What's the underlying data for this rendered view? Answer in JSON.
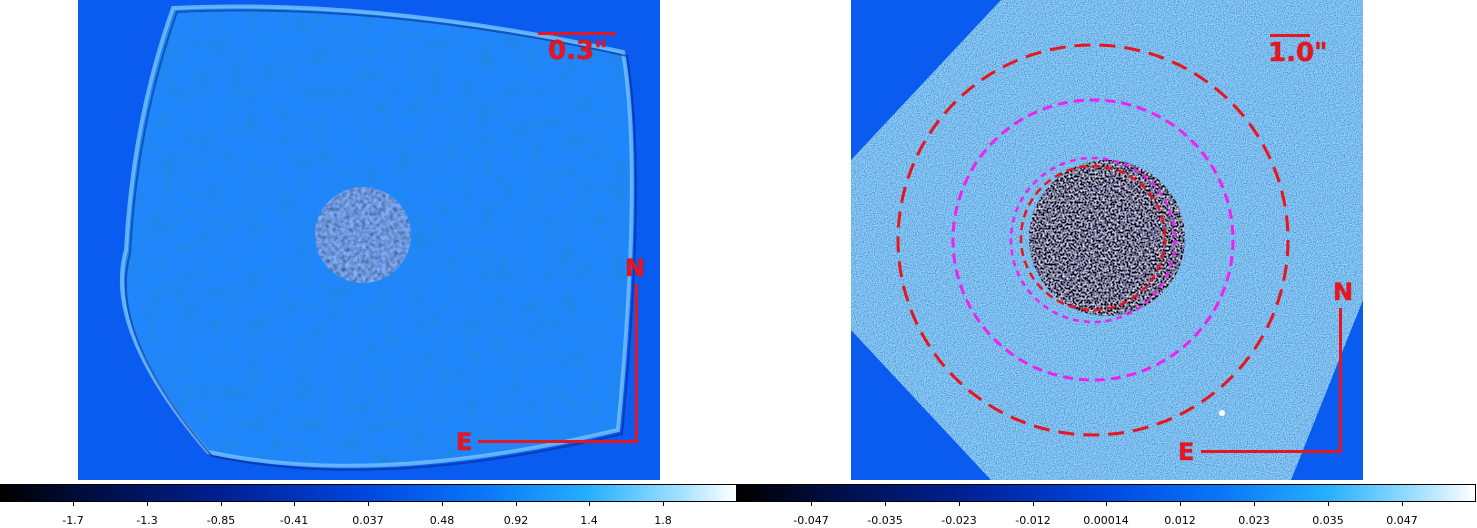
{
  "left_image": {
    "scale_label": "0.3\"",
    "north_label": "N",
    "east_label": "E"
  },
  "right_image": {
    "scale_label": "1.0\"",
    "north_label": "N",
    "east_label": "E"
  },
  "left_colorbar": {
    "ticks": [
      "-1.7",
      "-1.3",
      "-0.85",
      "-0.41",
      "0.037",
      "0.48",
      "0.92",
      "1.4",
      "1.8"
    ]
  },
  "right_colorbar": {
    "ticks": [
      "-0.047",
      "-0.035",
      "-0.023",
      "-0.012",
      "0.00014",
      "0.012",
      "0.023",
      "0.035",
      "0.047"
    ]
  },
  "colors": {
    "background_blue": "#0a5cf0",
    "annotation_red": "#e8141e",
    "annotation_magenta": "#ee22ee"
  }
}
